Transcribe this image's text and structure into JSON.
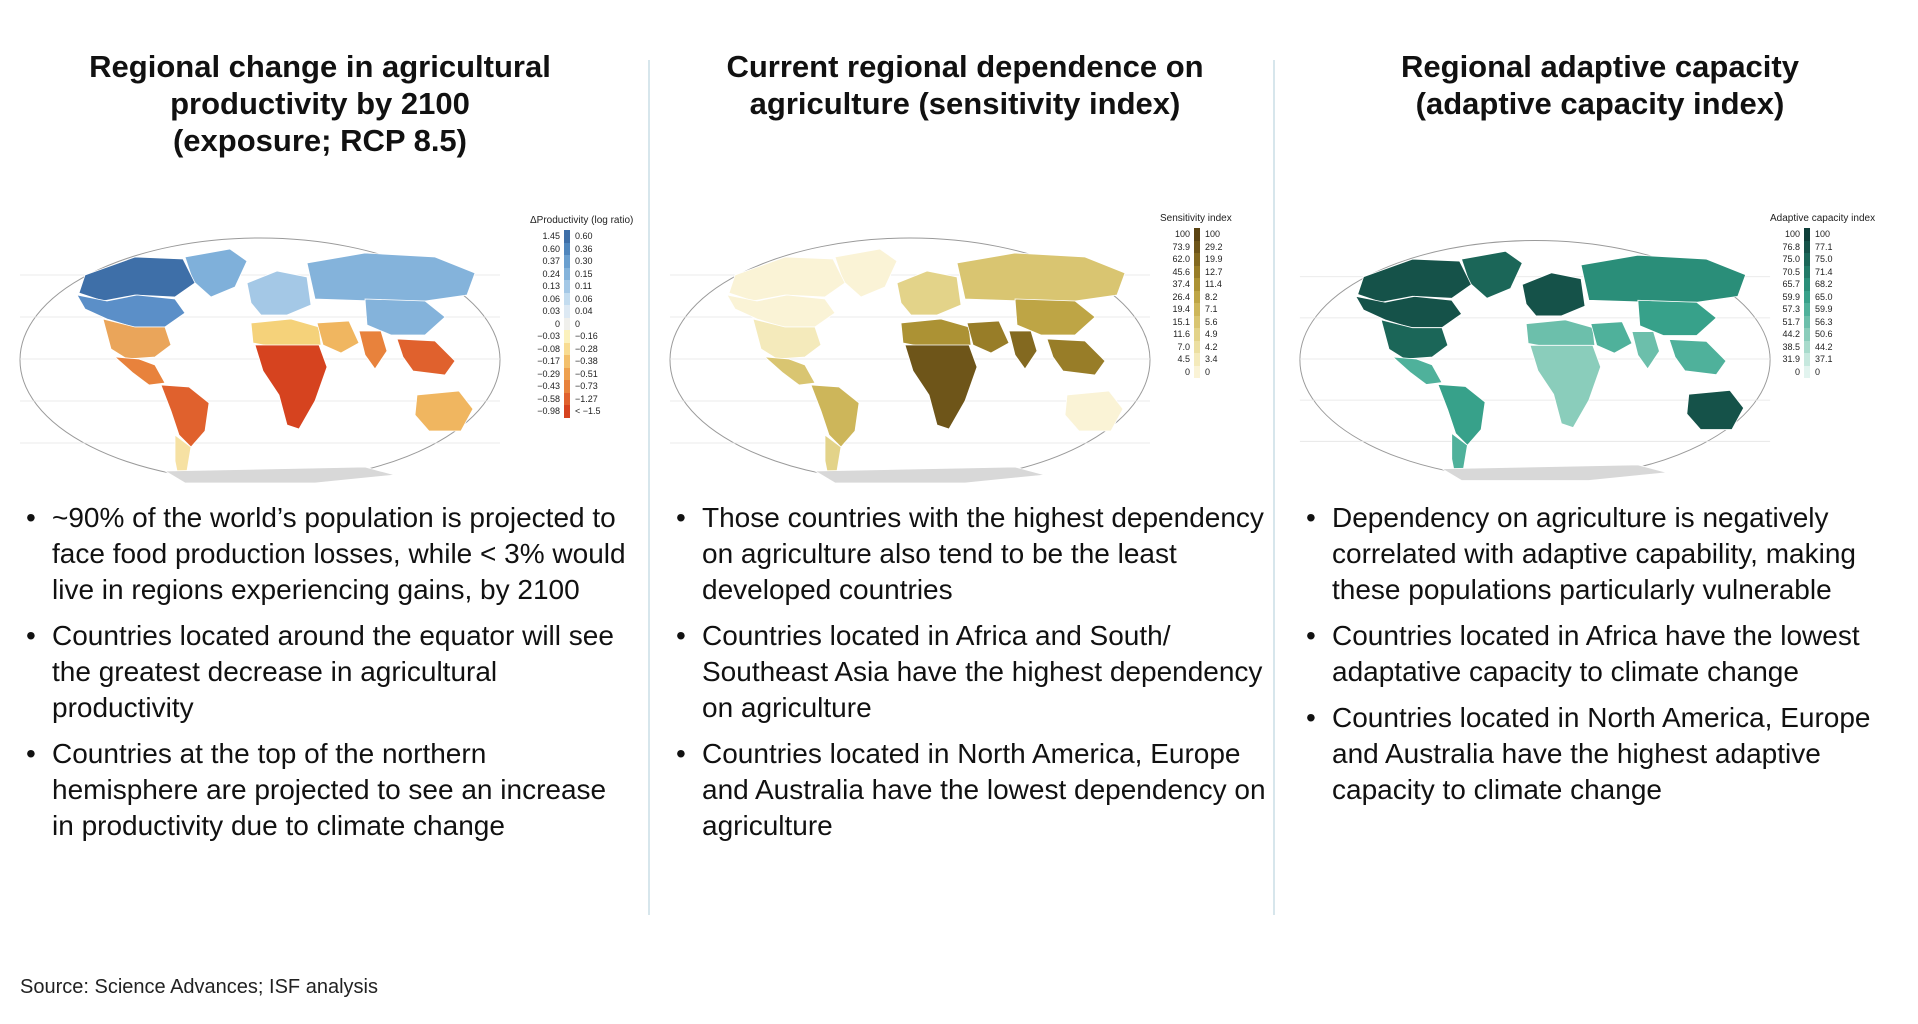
{
  "panels": [
    {
      "title_lines": [
        "Regional change in agricultural",
        "productivity by 2100",
        "(exposure; RCP 8.5)"
      ],
      "legend": {
        "title": "ΔProductivity (log ratio)",
        "left": [
          "1.45",
          "0.60",
          "0.37",
          "0.24",
          "0.13",
          "0.06",
          "0.03",
          "0",
          "−0.03",
          "−0.08",
          "−0.17",
          "−0.29",
          "−0.43",
          "−0.58",
          "−0.98"
        ],
        "right": [
          "0.60",
          "0.36",
          "0.30",
          "0.15",
          "0.11",
          "0.06",
          "0.04",
          "0",
          "−0.16",
          "−0.28",
          "−0.38",
          "−0.51",
          "−0.73",
          "−1.27",
          "< −1.5"
        ],
        "colors": [
          "#3e6fa8",
          "#4f86bd",
          "#6a9fcf",
          "#84b3db",
          "#a4c8e6",
          "#c3dcef",
          "#dde9f3",
          "#f0f0ec",
          "#fbf1bd",
          "#f8dc92",
          "#f3c06c",
          "#eea14f",
          "#e8823c",
          "#e0612d",
          "#d6431f"
        ]
      },
      "bullets": [
        "~90% of the world’s population is projected to face food production losses, while < 3% would live in regions experiencing gains, by 2100",
        "Countries located around the equator will see the greatest decrease in agricultural productivity",
        "Countries at the top of the northern hemisphere are projected to see an increase in productivity due to climate change"
      ]
    },
    {
      "title_lines": [
        "Current regional dependence on",
        "agriculture (sensitivity index)"
      ],
      "legend": {
        "title": "Sensitivity index",
        "left": [
          "100",
          "73.9",
          "62.0",
          "45.6",
          "37.4",
          "26.4",
          "19.4",
          "15.1",
          "11.6",
          "7.0",
          "4.5",
          "0"
        ],
        "right": [
          "100",
          "29.2",
          "19.9",
          "12.7",
          "11.4",
          "8.2",
          "7.1",
          "5.6",
          "4.9",
          "4.2",
          "3.4",
          "0"
        ],
        "colors": [
          "#5a4312",
          "#6e5519",
          "#836920",
          "#987d28",
          "#ac9234",
          "#bea545",
          "#cdb65a",
          "#d9c571",
          "#e3d389",
          "#ecdfa1",
          "#f4eabb",
          "#faf3d6"
        ]
      },
      "bullets": [
        "Those countries with the highest dependency on agriculture also tend to be the least developed countries",
        "Countries located in Africa and South/ Southeast Asia have the highest dependency on agriculture",
        "Countries located in North America, Europe and Australia have the lowest dependency on agriculture"
      ]
    },
    {
      "title_lines": [
        "Regional adaptive capacity",
        "(adaptive capacity index)"
      ],
      "legend": {
        "title": "Adaptive capacity index",
        "left": [
          "100",
          "76.8",
          "75.0",
          "70.5",
          "65.7",
          "59.9",
          "57.3",
          "51.7",
          "44.2",
          "38.5",
          "31.9",
          "0"
        ],
        "right": [
          "100",
          "77.1",
          "75.0",
          "71.4",
          "68.2",
          "65.0",
          "59.9",
          "56.3",
          "50.6",
          "44.2",
          "37.1",
          "0"
        ],
        "colors": [
          "#0e3e39",
          "#155249",
          "#1b6658",
          "#227a68",
          "#2a8e79",
          "#37a18a",
          "#4fb19b",
          "#6cbfab",
          "#8acdbb",
          "#a8dbcc",
          "#c6e8de",
          "#e2f4ef"
        ]
      },
      "bullets": [
        "Dependency on agriculture is negatively correlated with adaptive capability, making these populations particularly vulnerable",
        "Countries located in Africa have the lowest adaptative capacity to climate change",
        "Countries located in North America, Europe and Australia have the highest adaptive capacity to climate change"
      ]
    }
  ],
  "source": "Source: Science Advances; ISF analysis",
  "map_colors": {
    "p1": {
      "north_america": "#5b8fc8",
      "canada_n": "#3e6fa8",
      "us": "#eaa55a",
      "mexico": "#e8823c",
      "s_america": "#e0612d",
      "s_america_s": "#f6e1a3",
      "greenland": "#7fb0da",
      "europe": "#a4c8e6",
      "russia": "#84b3db",
      "africa": "#d6431f",
      "africa_n": "#f5d27a",
      "mideast": "#f0b660",
      "india": "#e8823c",
      "china": "#84b3db",
      "se_asia": "#e0612d",
      "australia": "#f0b660",
      "antarctica": "#d8d8d8",
      "ocean": "#ffffff"
    },
    "p2": {
      "north_america": "#faf3d6",
      "canada_n": "#faf3d6",
      "us": "#f4eabb",
      "mexico": "#d9c571",
      "s_america": "#cdb65a",
      "s_america_s": "#e3d389",
      "greenland": "#faf3d6",
      "europe": "#e3d389",
      "russia": "#d9c571",
      "africa": "#6e5519",
      "africa_n": "#ac9234",
      "mideast": "#987d28",
      "india": "#836920",
      "china": "#bea545",
      "se_asia": "#987d28",
      "australia": "#faf3d6",
      "antarctica": "#d8d8d8",
      "ocean": "#ffffff"
    },
    "p3": {
      "north_america": "#155249",
      "canada_n": "#155249",
      "us": "#1b6658",
      "mexico": "#4fb19b",
      "s_america": "#37a18a",
      "s_america_s": "#4fb19b",
      "greenland": "#1b6658",
      "europe": "#155249",
      "russia": "#2a8e79",
      "africa": "#8acdbb",
      "africa_n": "#6cbfab",
      "mideast": "#4fb19b",
      "india": "#6cbfab",
      "china": "#37a18a",
      "se_asia": "#4fb19b",
      "australia": "#155249",
      "antarctica": "#d8d8d8",
      "ocean": "#ffffff"
    }
  }
}
